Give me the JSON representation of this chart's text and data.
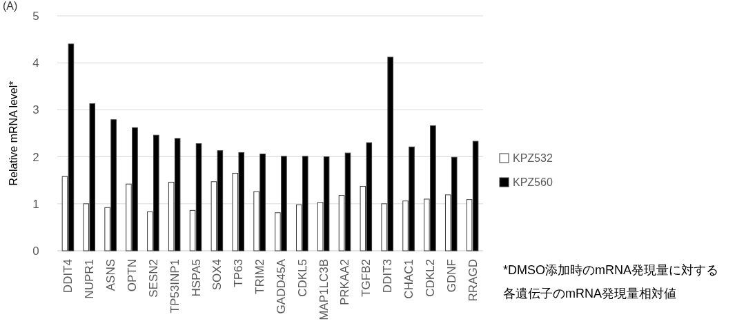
{
  "chart_data": {
    "type": "bar",
    "title": "(A)",
    "ylabel": "Relative mRNA level*",
    "categories": [
      "DDIT4",
      "NUPR1",
      "ASNS",
      "OPTN",
      "SESN2",
      "TP53INP1",
      "HSPA5",
      "SOX4",
      "TP63",
      "TRIM2",
      "GADD45A",
      "CDKL5",
      "MAP1LC3B",
      "PRKAA2",
      "TGFB2",
      "DDIT3",
      "CHAC1",
      "CDKL2",
      "GDNF",
      "RRAGD"
    ],
    "series": [
      {
        "name": "KPZ532",
        "color": "#ffffff",
        "values": [
          1.58,
          1.0,
          0.92,
          1.42,
          0.83,
          1.46,
          0.86,
          1.47,
          1.65,
          1.26,
          0.81,
          0.98,
          1.03,
          1.18,
          1.37,
          1.0,
          1.06,
          1.1,
          1.19,
          1.09
        ]
      },
      {
        "name": "KPZ560",
        "color": "#000000",
        "values": [
          4.4,
          3.13,
          2.79,
          2.62,
          2.46,
          2.39,
          2.28,
          2.13,
          2.09,
          2.06,
          2.01,
          2.01,
          2.0,
          2.08,
          2.3,
          4.12,
          2.21,
          2.66,
          1.99,
          2.33
        ]
      }
    ],
    "ylim": [
      0,
      5
    ],
    "yticks": [
      0,
      1,
      2,
      3,
      4,
      5
    ],
    "grid": "y",
    "legend": "right",
    "annotations": [
      "*DMSO添加時のmRNA発現量に対する",
      "各遺伝子のmRNA発現量相対値"
    ]
  }
}
